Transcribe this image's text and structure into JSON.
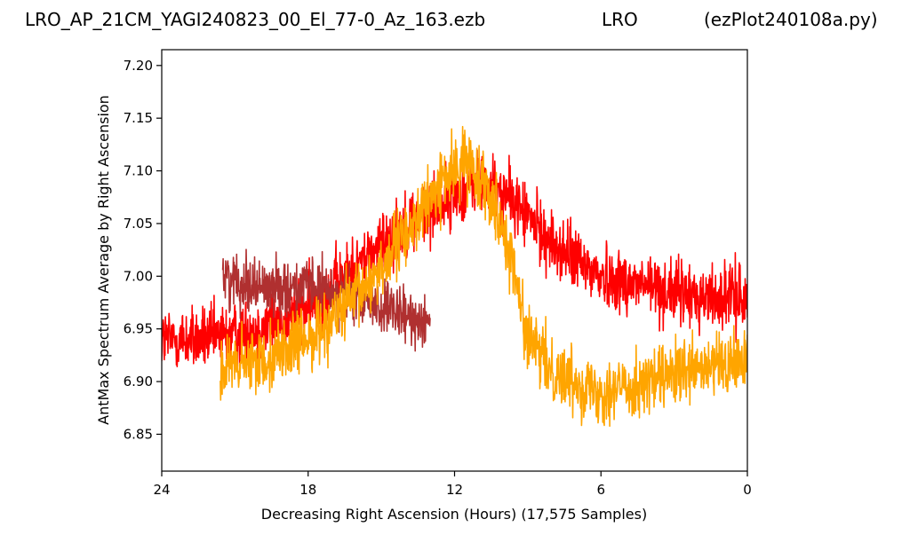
{
  "title": {
    "left": "LRO_AP_21CM_YAGI240823_00_El_77-0_Az_163.ezb",
    "center": "LRO",
    "right": "(ezPlot240108a.py)"
  },
  "chart_data": {
    "type": "line",
    "xlabel": "Decreasing Right Ascension (Hours) (17,575 Samples)",
    "ylabel": "AntMax Spectrum Average by Right Ascension",
    "xlim": [
      24,
      0
    ],
    "ylim": [
      6.815,
      7.215
    ],
    "x_ticks": [
      24,
      18,
      12,
      6,
      0
    ],
    "x_tick_labels": [
      "24",
      "18",
      "12",
      "6",
      "0"
    ],
    "y_ticks": [
      6.85,
      6.9,
      6.95,
      7.0,
      7.05,
      7.1,
      7.15,
      7.2
    ],
    "y_tick_labels": [
      "6.85",
      "6.90",
      "6.95",
      "7.00",
      "7.05",
      "7.10",
      "7.15",
      "7.20"
    ],
    "grid": false,
    "series": [
      {
        "color": "#ff0000",
        "x": [
          24,
          22,
          20,
          18,
          16,
          14,
          12.5,
          11,
          9.5,
          8,
          6,
          4,
          2,
          0
        ],
        "y": [
          6.94,
          6.94,
          6.95,
          6.97,
          7.01,
          7.05,
          7.07,
          7.09,
          7.07,
          7.03,
          7.0,
          6.99,
          6.98,
          6.98
        ],
        "spread": 0.03
      },
      {
        "color": "#b03030",
        "x": [
          21.5,
          20,
          18,
          16,
          14,
          13
        ],
        "y": [
          7.0,
          6.99,
          6.99,
          6.98,
          6.96,
          6.96
        ],
        "spread": 0.025
      },
      {
        "color": "#ffa500",
        "x": [
          21.6,
          20,
          18,
          16,
          14,
          12.5,
          11.5,
          10.5,
          9.7,
          9.0,
          8,
          6,
          4,
          2,
          0
        ],
        "y": [
          6.91,
          6.92,
          6.94,
          6.98,
          7.04,
          7.09,
          7.11,
          7.08,
          7.02,
          6.94,
          6.91,
          6.89,
          6.9,
          6.91,
          6.92
        ],
        "spread": 0.03
      }
    ]
  }
}
